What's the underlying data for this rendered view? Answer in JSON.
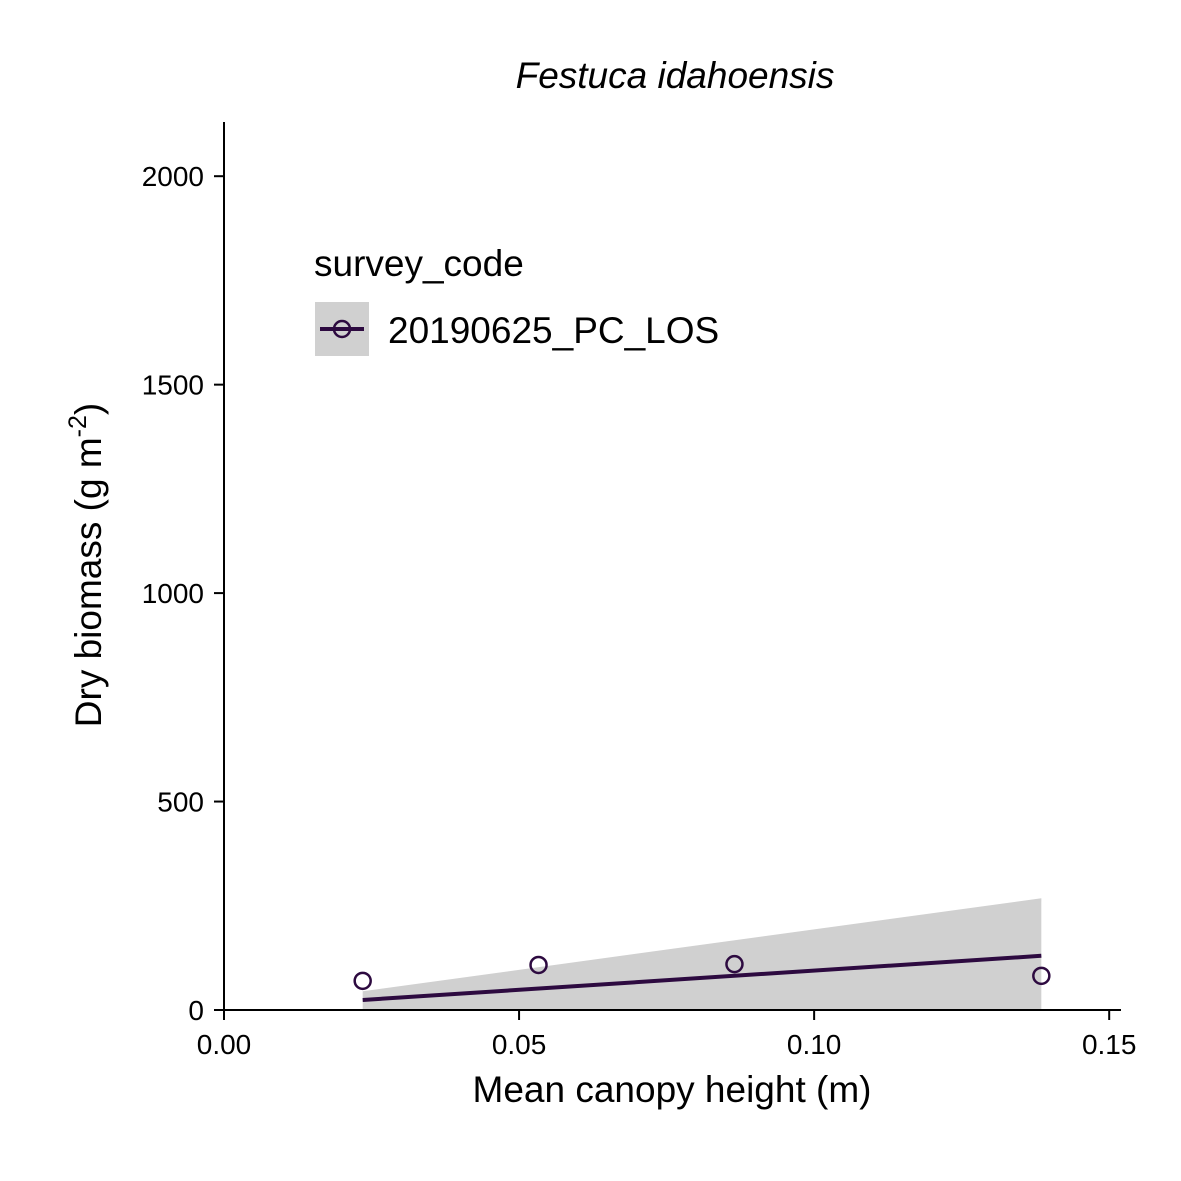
{
  "chart_data": {
    "type": "scatter",
    "title": "Festuca idahoensis",
    "xlabel": "Mean canopy height (m)",
    "ylabel_main": "Dry biomass (g m",
    "ylabel_sup": "-2",
    "ylabel_close": ")",
    "xlim": [
      0,
      0.152
    ],
    "ylim": [
      0,
      2130
    ],
    "x_ticks": [
      0,
      0.05,
      0.1,
      0.15
    ],
    "x_tick_labels": [
      "0.00",
      "0.05",
      "0.10",
      "0.15"
    ],
    "y_ticks": [
      0,
      500,
      1000,
      1500,
      2000
    ],
    "y_tick_labels": [
      "0",
      "500",
      "1000",
      "1500",
      "2000"
    ],
    "grid": false,
    "legend_placement": "top-left",
    "legend_title": "survey_code",
    "series": [
      {
        "name": "20190625_PC_LOS",
        "color": "#2d0a40",
        "marker": "open-circle",
        "points": [
          {
            "x": 0.0235,
            "y": 70
          },
          {
            "x": 0.0533,
            "y": 108
          },
          {
            "x": 0.0865,
            "y": 110
          },
          {
            "x": 0.1385,
            "y": 82
          }
        ],
        "fit_line": [
          {
            "x": 0.0235,
            "y": 24
          },
          {
            "x": 0.1385,
            "y": 130
          }
        ],
        "confidence_band": {
          "color": "#d0d0d0",
          "x": [
            0.0235,
            0.1385
          ],
          "upper": [
            45,
            268
          ],
          "lower": [
            0,
            0
          ]
        }
      }
    ]
  }
}
